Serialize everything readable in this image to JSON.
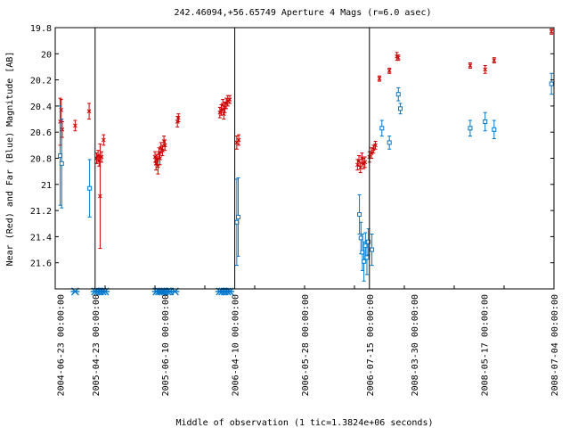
{
  "chart_data": {
    "type": "scatter",
    "title": "242.46094,+56.65749   Aperture 4 Mags (r=6.0 asec)",
    "xlabel": "Middle of observation (1 tic=1.3824e+06 seconds)",
    "ylabel": "Near (Red) and Far (Blue) Magnitude [AB]",
    "ylim": [
      21.8,
      19.8
    ],
    "y_inverted": true,
    "yticks": [
      19.8,
      20,
      20.2,
      20.4,
      20.6,
      20.8,
      21,
      21.2,
      21.4,
      21.6
    ],
    "ytick_labels": [
      "19.8",
      "20",
      "20.2",
      "20.4",
      "20.6",
      "20.8",
      "21",
      "21.2",
      "21.4",
      "21.6"
    ],
    "xlim": [
      0,
      10
    ],
    "xticks": [
      0,
      1,
      2,
      3,
      4,
      5,
      6,
      7,
      8,
      9
    ],
    "xtick_labels": [
      "2004-06-23 00:00:00",
      "2005-04-23 00:00:00",
      "2005-06-10 00:00:00",
      "2006-04-10 00:00:00",
      "2006-05-28 00:00:00",
      "2006-07-15 00:00:00",
      "2008-03-30 00:00:00",
      "2008-05-17 00:00:00",
      "2008-07-04 00:00:00"
    ],
    "xtick_positions": [
      0.1,
      0.8,
      2.2,
      3.6,
      5.0,
      6.3,
      7.2,
      8.6,
      10.0
    ],
    "segment_breaks": [
      0.8,
      3.6,
      6.3
    ],
    "grid": false,
    "legend": "none",
    "colors": {
      "near": "#cc0000",
      "far": "#0077cc"
    },
    "series": [
      {
        "name": "Near",
        "marker": "x",
        "points": [
          {
            "x": 0.1,
            "y": 20.52,
            "err": 0.18
          },
          {
            "x": 0.12,
            "y": 20.43,
            "err": 0.08
          },
          {
            "x": 0.14,
            "y": 20.58,
            "err": 0.06
          },
          {
            "x": 0.4,
            "y": 20.55,
            "err": 0.04
          },
          {
            "x": 0.68,
            "y": 20.44,
            "err": 0.06
          },
          {
            "x": 0.83,
            "y": 20.8,
            "err": 0.04
          },
          {
            "x": 0.86,
            "y": 20.78,
            "err": 0.04
          },
          {
            "x": 0.88,
            "y": 20.82,
            "err": 0.04
          },
          {
            "x": 0.9,
            "y": 21.09,
            "err": 0.4
          },
          {
            "x": 0.93,
            "y": 20.79,
            "err": 0.04
          },
          {
            "x": 0.97,
            "y": 20.66,
            "err": 0.04
          },
          {
            "x": 2.0,
            "y": 20.79,
            "err": 0.04
          },
          {
            "x": 2.02,
            "y": 20.84,
            "err": 0.05
          },
          {
            "x": 2.04,
            "y": 20.81,
            "err": 0.04
          },
          {
            "x": 2.06,
            "y": 20.86,
            "err": 0.06
          },
          {
            "x": 2.08,
            "y": 20.76,
            "err": 0.04
          },
          {
            "x": 2.1,
            "y": 20.8,
            "err": 0.05
          },
          {
            "x": 2.12,
            "y": 20.72,
            "err": 0.04
          },
          {
            "x": 2.15,
            "y": 20.74,
            "err": 0.04
          },
          {
            "x": 2.18,
            "y": 20.67,
            "err": 0.04
          },
          {
            "x": 2.2,
            "y": 20.7,
            "err": 0.04
          },
          {
            "x": 2.45,
            "y": 20.52,
            "err": 0.04
          },
          {
            "x": 2.47,
            "y": 20.49,
            "err": 0.03
          },
          {
            "x": 3.3,
            "y": 20.45,
            "err": 0.04
          },
          {
            "x": 3.33,
            "y": 20.43,
            "err": 0.04
          },
          {
            "x": 3.36,
            "y": 20.39,
            "err": 0.04
          },
          {
            "x": 3.38,
            "y": 20.46,
            "err": 0.04
          },
          {
            "x": 3.4,
            "y": 20.41,
            "err": 0.04
          },
          {
            "x": 3.43,
            "y": 20.38,
            "err": 0.04
          },
          {
            "x": 3.46,
            "y": 20.36,
            "err": 0.04
          },
          {
            "x": 3.5,
            "y": 20.35,
            "err": 0.03
          },
          {
            "x": 3.64,
            "y": 20.68,
            "err": 0.05
          },
          {
            "x": 3.68,
            "y": 20.66,
            "err": 0.04
          },
          {
            "x": 6.06,
            "y": 20.85,
            "err": 0.04
          },
          {
            "x": 6.09,
            "y": 20.82,
            "err": 0.04
          },
          {
            "x": 6.12,
            "y": 20.87,
            "err": 0.04
          },
          {
            "x": 6.15,
            "y": 20.8,
            "err": 0.04
          },
          {
            "x": 6.18,
            "y": 20.84,
            "err": 0.04
          },
          {
            "x": 6.21,
            "y": 20.83,
            "err": 0.04
          },
          {
            "x": 6.3,
            "y": 20.79,
            "err": 0.04
          },
          {
            "x": 6.34,
            "y": 20.76,
            "err": 0.04
          },
          {
            "x": 6.38,
            "y": 20.73,
            "err": 0.03
          },
          {
            "x": 6.42,
            "y": 20.7,
            "err": 0.03
          },
          {
            "x": 6.5,
            "y": 20.19,
            "err": 0.02
          },
          {
            "x": 6.7,
            "y": 20.13,
            "err": 0.02
          },
          {
            "x": 6.85,
            "y": 20.02,
            "err": 0.03
          },
          {
            "x": 6.88,
            "y": 20.03,
            "err": 0.02
          },
          {
            "x": 8.32,
            "y": 20.09,
            "err": 0.02
          },
          {
            "x": 8.62,
            "y": 20.12,
            "err": 0.03
          },
          {
            "x": 8.8,
            "y": 20.05,
            "err": 0.02
          },
          {
            "x": 9.95,
            "y": 19.83,
            "err": 0.02
          }
        ]
      },
      {
        "name": "Far",
        "marker": "square",
        "points": [
          {
            "x": 0.1,
            "y": 20.78,
            "err": 0.38
          },
          {
            "x": 0.13,
            "y": 20.84,
            "err": 0.34
          },
          {
            "x": 0.69,
            "y": 21.03,
            "err": 0.22
          },
          {
            "x": 3.64,
            "y": 21.29,
            "err": 0.33
          },
          {
            "x": 3.67,
            "y": 21.25,
            "err": 0.3
          },
          {
            "x": 6.1,
            "y": 21.23,
            "err": 0.15
          },
          {
            "x": 6.13,
            "y": 21.41,
            "err": 0.12
          },
          {
            "x": 6.16,
            "y": 21.52,
            "err": 0.14
          },
          {
            "x": 6.19,
            "y": 21.59,
            "err": 0.15
          },
          {
            "x": 6.22,
            "y": 21.47,
            "err": 0.1
          },
          {
            "x": 6.25,
            "y": 21.56,
            "err": 0.13
          },
          {
            "x": 6.28,
            "y": 21.44,
            "err": 0.1
          },
          {
            "x": 6.35,
            "y": 21.5,
            "err": 0.12
          },
          {
            "x": 6.55,
            "y": 20.57,
            "err": 0.06
          },
          {
            "x": 6.7,
            "y": 20.68,
            "err": 0.05
          },
          {
            "x": 6.88,
            "y": 20.31,
            "err": 0.05
          },
          {
            "x": 6.92,
            "y": 20.42,
            "err": 0.04
          },
          {
            "x": 8.32,
            "y": 20.57,
            "err": 0.06
          },
          {
            "x": 8.62,
            "y": 20.52,
            "err": 0.07
          },
          {
            "x": 8.8,
            "y": 20.58,
            "err": 0.07
          },
          {
            "x": 9.95,
            "y": 20.23,
            "err": 0.08
          }
        ]
      },
      {
        "name": "Far detections",
        "marker": "asterisk",
        "points": [
          {
            "x": 0.4,
            "y": 21.82
          },
          {
            "x": 0.8,
            "y": 21.82
          },
          {
            "x": 0.85,
            "y": 21.82
          },
          {
            "x": 0.9,
            "y": 21.82
          },
          {
            "x": 0.95,
            "y": 21.82
          },
          {
            "x": 1.0,
            "y": 21.82
          },
          {
            "x": 2.03,
            "y": 21.82
          },
          {
            "x": 2.08,
            "y": 21.82
          },
          {
            "x": 2.12,
            "y": 21.82
          },
          {
            "x": 2.16,
            "y": 21.82
          },
          {
            "x": 2.2,
            "y": 21.82
          },
          {
            "x": 2.25,
            "y": 21.82
          },
          {
            "x": 2.3,
            "y": 21.82
          },
          {
            "x": 2.4,
            "y": 21.82
          },
          {
            "x": 3.3,
            "y": 21.82
          },
          {
            "x": 3.35,
            "y": 21.82
          },
          {
            "x": 3.4,
            "y": 21.82
          },
          {
            "x": 3.45,
            "y": 21.82
          },
          {
            "x": 3.5,
            "y": 21.82
          }
        ]
      }
    ]
  }
}
